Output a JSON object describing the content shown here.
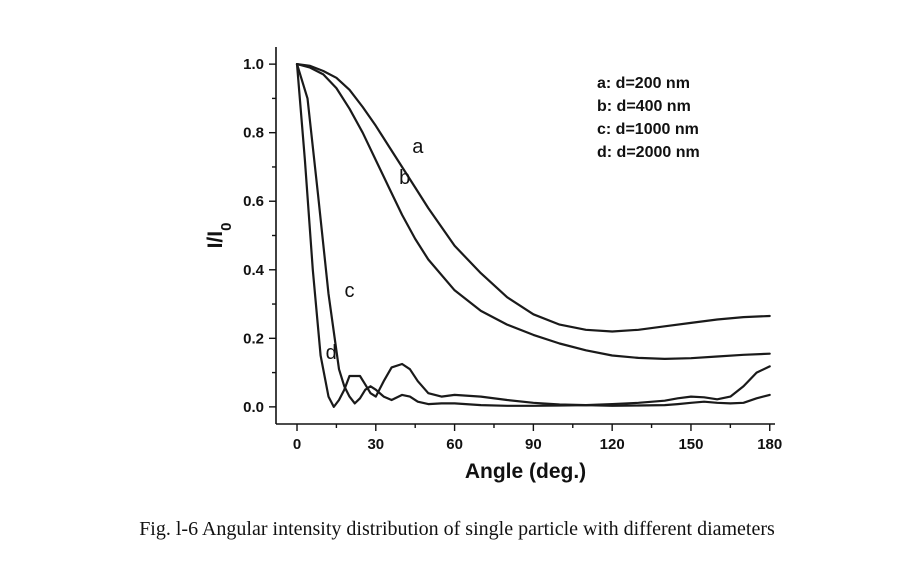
{
  "caption": "Fig. l-6 Angular intensity distribution of single particle with different diameters",
  "chart_data": {
    "type": "line",
    "title": "",
    "xlabel": "Angle (deg.)",
    "ylabel_main": "I/I",
    "ylabel_sub": "0",
    "xlim": [
      -8,
      182
    ],
    "ylim": [
      -0.05,
      1.05
    ],
    "xticks": [
      0,
      30,
      60,
      90,
      120,
      150,
      180
    ],
    "yticks": [
      0.0,
      0.2,
      0.4,
      0.6,
      0.8,
      1.0
    ],
    "ytick_labels": [
      "0.0",
      "0.2",
      "0.4",
      "0.6",
      "0.8",
      "1.0"
    ],
    "grid": false,
    "legend_position": "top-right",
    "legend": [
      "a: d=200 nm",
      "b: d=400 nm",
      "c: d=1000 nm",
      "d: d=2000 nm"
    ],
    "series": [
      {
        "label": "a",
        "x": [
          0,
          5,
          10,
          15,
          20,
          25,
          30,
          35,
          40,
          45,
          50,
          60,
          70,
          80,
          90,
          100,
          110,
          120,
          130,
          140,
          150,
          160,
          170,
          180
        ],
        "y": [
          1.0,
          0.995,
          0.98,
          0.96,
          0.925,
          0.875,
          0.82,
          0.76,
          0.7,
          0.64,
          0.58,
          0.47,
          0.39,
          0.32,
          0.27,
          0.24,
          0.225,
          0.22,
          0.225,
          0.235,
          0.245,
          0.255,
          0.262,
          0.265
        ]
      },
      {
        "label": "b",
        "x": [
          0,
          5,
          10,
          15,
          20,
          25,
          30,
          35,
          40,
          45,
          50,
          60,
          70,
          80,
          90,
          100,
          110,
          120,
          130,
          140,
          150,
          160,
          170,
          180
        ],
        "y": [
          1.0,
          0.99,
          0.97,
          0.93,
          0.87,
          0.8,
          0.72,
          0.64,
          0.56,
          0.49,
          0.43,
          0.34,
          0.28,
          0.24,
          0.21,
          0.185,
          0.165,
          0.15,
          0.143,
          0.14,
          0.142,
          0.147,
          0.152,
          0.155
        ]
      },
      {
        "label": "c",
        "x": [
          0,
          4,
          8,
          12,
          16,
          18,
          20,
          22,
          24,
          26,
          28,
          30,
          33,
          36,
          40,
          43,
          46,
          50,
          55,
          60,
          70,
          80,
          90,
          100,
          110,
          120,
          130,
          140,
          145,
          150,
          155,
          160,
          165,
          170,
          175,
          180
        ],
        "y": [
          1.0,
          0.9,
          0.62,
          0.33,
          0.11,
          0.06,
          0.03,
          0.01,
          0.025,
          0.05,
          0.06,
          0.05,
          0.03,
          0.02,
          0.035,
          0.03,
          0.015,
          0.008,
          0.01,
          0.01,
          0.005,
          0.003,
          0.003,
          0.004,
          0.005,
          0.003,
          0.004,
          0.005,
          0.008,
          0.012,
          0.015,
          0.012,
          0.01,
          0.012,
          0.025,
          0.035
        ]
      },
      {
        "label": "d",
        "x": [
          0,
          3,
          6,
          9,
          12,
          14,
          16,
          18,
          20,
          22,
          24,
          26,
          28,
          30,
          33,
          36,
          40,
          43,
          46,
          50,
          55,
          60,
          70,
          80,
          90,
          100,
          110,
          120,
          130,
          140,
          145,
          150,
          155,
          160,
          165,
          170,
          175,
          180
        ],
        "y": [
          1.0,
          0.72,
          0.4,
          0.15,
          0.03,
          0.0,
          0.02,
          0.05,
          0.09,
          0.09,
          0.09,
          0.065,
          0.04,
          0.03,
          0.075,
          0.115,
          0.125,
          0.11,
          0.075,
          0.04,
          0.03,
          0.035,
          0.03,
          0.02,
          0.012,
          0.007,
          0.005,
          0.008,
          0.012,
          0.018,
          0.025,
          0.03,
          0.028,
          0.022,
          0.03,
          0.06,
          0.1,
          0.118
        ]
      }
    ],
    "curve_labels": [
      {
        "text": "a",
        "x": 46,
        "y": 0.74
      },
      {
        "text": "b",
        "x": 41,
        "y": 0.65
      },
      {
        "text": "c",
        "x": 20,
        "y": 0.32
      },
      {
        "text": "d",
        "x": 13,
        "y": 0.14
      }
    ]
  }
}
